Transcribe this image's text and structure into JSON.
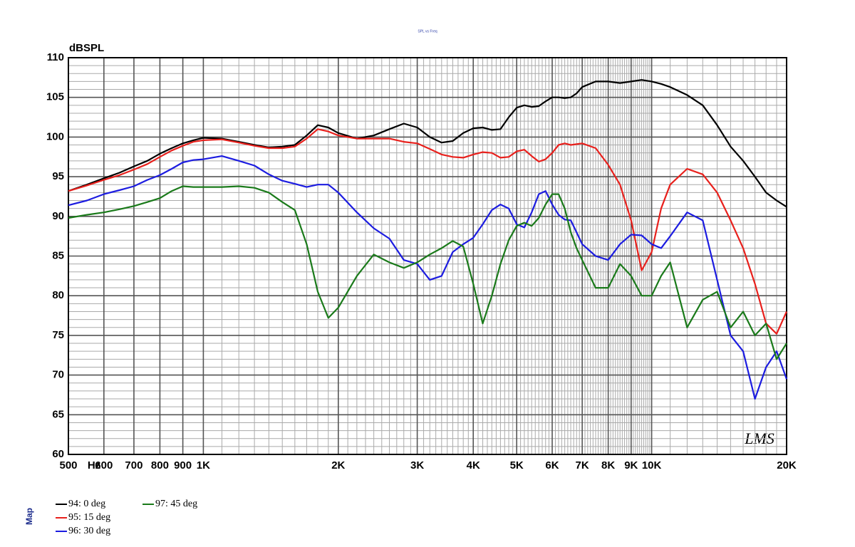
{
  "chart_data": {
    "type": "line",
    "title": "SPL vs Freq",
    "ylabel": "dBSPL",
    "xlabel": "Hz",
    "side_label": "Map",
    "logo": "LMS",
    "xscale": "log",
    "grid": true,
    "xlim": [
      500,
      20000
    ],
    "ylim": [
      60,
      110
    ],
    "xticks": [
      500,
      600,
      700,
      800,
      900,
      {
        "value": 1000,
        "label": "1K"
      },
      {
        "value": 2000,
        "label": "2K"
      },
      {
        "value": 3000,
        "label": "3K"
      },
      {
        "value": 4000,
        "label": "4K"
      },
      {
        "value": 5000,
        "label": "5K"
      },
      {
        "value": 6000,
        "label": "6K"
      },
      {
        "value": 7000,
        "label": "7K"
      },
      {
        "value": 8000,
        "label": "8K"
      },
      {
        "value": 9000,
        "label": "9K"
      },
      {
        "value": 10000,
        "label": "10K"
      },
      {
        "value": 20000,
        "label": "20K"
      }
    ],
    "x_minor_ticks": [
      1100,
      1200,
      1300,
      1400,
      1500,
      1600,
      1700,
      1800,
      1900,
      2100,
      2200,
      2300,
      2400,
      2500,
      2600,
      2700,
      2800,
      2900,
      3100,
      3200,
      3300,
      3400,
      3500,
      3600,
      3700,
      3800,
      3900,
      4100,
      4200,
      4300,
      4400,
      4500,
      4600,
      4700,
      4800,
      4900,
      5100,
      5200,
      5300,
      5400,
      5500,
      5600,
      5700,
      5800,
      5900,
      6100,
      6200,
      6300,
      6400,
      6500,
      6600,
      6700,
      6800,
      6900,
      7100,
      7200,
      7300,
      7400,
      7500,
      7600,
      7700,
      7800,
      7900,
      8100,
      8200,
      8300,
      8400,
      8500,
      8600,
      8700,
      8800,
      8900,
      9100,
      9200,
      9300,
      9400,
      9500,
      9600,
      9700,
      9800,
      9900,
      11000,
      12000,
      13000,
      14000,
      15000,
      16000,
      17000,
      18000,
      19000
    ],
    "yticks": [
      60,
      65,
      70,
      75,
      80,
      85,
      90,
      95,
      100,
      105,
      110
    ],
    "y_minor_ticks": [
      61,
      62,
      63,
      64,
      66,
      67,
      68,
      69,
      71,
      72,
      73,
      74,
      76,
      77,
      78,
      79,
      81,
      82,
      83,
      84,
      86,
      87,
      88,
      89,
      91,
      92,
      93,
      94,
      96,
      97,
      98,
      99,
      101,
      102,
      103,
      104,
      106,
      107,
      108,
      109
    ],
    "x": [
      500,
      550,
      600,
      650,
      700,
      750,
      800,
      850,
      900,
      950,
      1000,
      1100,
      1200,
      1300,
      1400,
      1500,
      1600,
      1700,
      1800,
      1900,
      2000,
      2200,
      2400,
      2600,
      2800,
      3000,
      3200,
      3400,
      3600,
      3800,
      4000,
      4200,
      4400,
      4600,
      4800,
      5000,
      5200,
      5400,
      5600,
      5800,
      6000,
      6200,
      6400,
      6600,
      6800,
      7000,
      7500,
      8000,
      8500,
      9000,
      9500,
      10000,
      10500,
      11000,
      12000,
      13000,
      14000,
      15000,
      16000,
      17000,
      18000,
      19000,
      20000
    ],
    "series": [
      {
        "name": "94: 0 deg",
        "color": "#000000",
        "values": [
          93.2,
          94.0,
          94.8,
          95.5,
          96.3,
          97.0,
          97.9,
          98.6,
          99.2,
          99.6,
          99.9,
          99.8,
          99.4,
          99.0,
          98.7,
          98.8,
          99.0,
          100.2,
          101.5,
          101.2,
          100.5,
          99.8,
          100.2,
          101.0,
          101.7,
          101.2,
          100.0,
          99.3,
          99.5,
          100.5,
          101.1,
          101.2,
          100.9,
          101.0,
          102.5,
          103.7,
          104.0,
          103.8,
          103.9,
          104.5,
          105.0,
          105.0,
          104.9,
          105.0,
          105.5,
          106.3,
          107.0,
          107.0,
          106.8,
          107.0,
          107.2,
          107.0,
          106.7,
          106.3,
          105.3,
          104.0,
          101.5,
          98.8,
          97.0,
          95.0,
          93.0,
          92.0,
          91.2
        ]
      },
      {
        "name": "95: 15 deg",
        "color": "#e8201c",
        "values": [
          93.2,
          93.9,
          94.6,
          95.2,
          95.9,
          96.6,
          97.5,
          98.3,
          98.9,
          99.4,
          99.6,
          99.7,
          99.3,
          98.9,
          98.6,
          98.6,
          98.8,
          99.8,
          101.0,
          100.7,
          100.2,
          99.8,
          99.8,
          99.8,
          99.4,
          99.2,
          98.5,
          97.8,
          97.5,
          97.4,
          97.8,
          98.1,
          98.0,
          97.4,
          97.5,
          98.2,
          98.4,
          97.6,
          96.9,
          97.2,
          98.0,
          99.0,
          99.2,
          99.0,
          99.1,
          99.2,
          98.6,
          96.5,
          94.0,
          89.5,
          83.2,
          85.5,
          91.0,
          94.0,
          96.0,
          95.3,
          93.0,
          89.5,
          86.0,
          81.5,
          76.5,
          75.2,
          78.0
        ]
      },
      {
        "name": "96: 30 deg",
        "color": "#1c1ce0",
        "values": [
          91.4,
          92.0,
          92.8,
          93.3,
          93.8,
          94.6,
          95.2,
          96.0,
          96.8,
          97.1,
          97.2,
          97.6,
          97.0,
          96.4,
          95.3,
          94.5,
          94.1,
          93.7,
          94.0,
          94.0,
          93.0,
          90.5,
          88.5,
          87.2,
          84.5,
          84.0,
          82.0,
          82.5,
          85.5,
          86.5,
          87.3,
          89.0,
          90.8,
          91.5,
          91.0,
          89.0,
          88.6,
          90.5,
          92.8,
          93.2,
          91.5,
          90.2,
          89.6,
          89.5,
          88.0,
          86.5,
          85.0,
          84.5,
          86.5,
          87.7,
          87.6,
          86.5,
          86.0,
          87.5,
          90.5,
          89.5,
          82.0,
          75.0,
          73.0,
          67.0,
          71.0,
          73.0,
          69.5
        ]
      },
      {
        "name": "97: 45 deg",
        "color": "#1a7a1a",
        "values": [
          89.8,
          90.2,
          90.5,
          90.9,
          91.3,
          91.8,
          92.3,
          93.2,
          93.8,
          93.7,
          93.7,
          93.7,
          93.8,
          93.6,
          93.0,
          91.8,
          90.8,
          86.5,
          80.5,
          77.2,
          78.5,
          82.5,
          85.2,
          84.2,
          83.5,
          84.2,
          85.2,
          86.0,
          86.9,
          86.2,
          81.5,
          76.5,
          80.0,
          84.0,
          87.0,
          88.8,
          89.2,
          88.8,
          89.8,
          91.5,
          92.8,
          92.8,
          91.0,
          88.0,
          86.0,
          84.5,
          81.0,
          81.0,
          84.0,
          82.5,
          80.0,
          80.0,
          82.5,
          84.2,
          76.0,
          79.5,
          80.5,
          76.0,
          78.0,
          75.0,
          76.5,
          72.0,
          74.0
        ]
      }
    ]
  }
}
